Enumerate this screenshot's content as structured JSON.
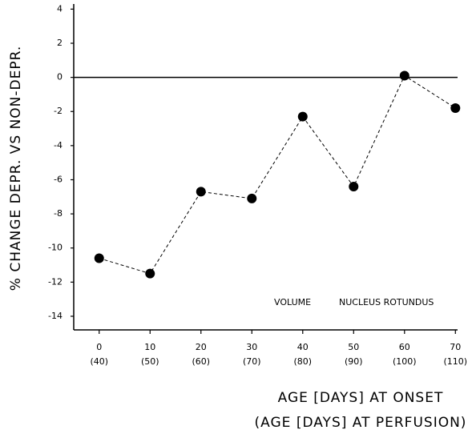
{
  "chart_data": {
    "type": "line",
    "x": [
      0,
      10,
      20,
      30,
      40,
      50,
      60,
      70
    ],
    "x_sublabels": [
      "(40)",
      "(50)",
      "(60)",
      "(70)",
      "(80)",
      "(90)",
      "(100)",
      "(110)"
    ],
    "series": [
      {
        "color": "#000000",
        "values": [
          -10.6,
          -11.5,
          -6.7,
          -7.1,
          -2.3,
          -6.4,
          0.1,
          -1.8
        ]
      }
    ],
    "xlim": [
      -5,
      72
    ],
    "xticks": [
      0,
      10,
      20,
      30,
      40,
      50,
      60,
      70
    ],
    "ylim": [
      -14.8,
      4.3
    ],
    "yticks": [
      4,
      2,
      0,
      -2,
      -4,
      -6,
      -8,
      -10,
      -12,
      -14
    ],
    "zero_line": true,
    "xlabel": [
      "AGE [DAYS] AT ONSET",
      "(AGE [DAYS] AT PERFUSION)"
    ],
    "ylabel": "% CHANGE   DEPR. VS NON-DEPR.",
    "annotations": [
      "VOLUME",
      "NUCLEUS ROTUNDUS"
    ]
  }
}
